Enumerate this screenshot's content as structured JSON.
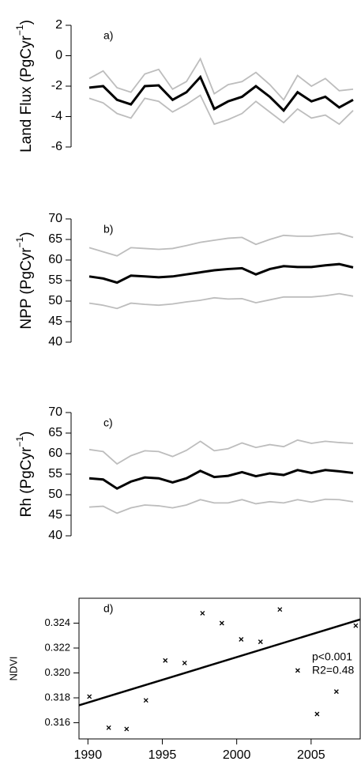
{
  "chart_data": [
    {
      "type": "line",
      "label": "a)",
      "ylabel": "Land Flux  (PgCyr",
      "ylabel_sup": "−1",
      "ylabel_end": ")",
      "x": [
        1990,
        1991,
        1992,
        1993,
        1994,
        1995,
        1996,
        1997,
        1998,
        1999,
        2000,
        2001,
        2002,
        2003,
        2004,
        2005,
        2006,
        2007,
        2008,
        2009
      ],
      "ylim": [
        -6,
        2
      ],
      "yticks": [
        -6,
        -4,
        -2,
        0,
        2
      ],
      "series": [
        {
          "color": "#bdbdbd",
          "values": [
            -1.5,
            -1.0,
            -2.1,
            -2.4,
            -1.2,
            -0.9,
            -2.2,
            -1.7,
            -0.2,
            -2.5,
            -1.9,
            -1.7,
            -1.1,
            -1.9,
            -2.9,
            -1.3,
            -2.0,
            -1.5,
            -2.3,
            -2.2
          ]
        },
        {
          "color": "#bdbdbd",
          "values": [
            -2.8,
            -3.1,
            -3.8,
            -4.1,
            -2.8,
            -3.0,
            -3.7,
            -3.2,
            -2.6,
            -4.5,
            -4.2,
            -3.8,
            -3.0,
            -3.7,
            -4.4,
            -3.5,
            -4.1,
            -3.9,
            -4.5,
            -3.6
          ]
        },
        {
          "color": "#000000",
          "values": [
            -2.1,
            -2.0,
            -2.9,
            -3.2,
            -2.0,
            -1.95,
            -2.9,
            -2.4,
            -1.4,
            -3.5,
            -3.0,
            -2.7,
            -2.0,
            -2.7,
            -3.6,
            -2.4,
            -3.0,
            -2.7,
            -3.4,
            -2.9
          ]
        }
      ]
    },
    {
      "type": "line",
      "label": "b)",
      "ylabel": "NPP (PgCyr",
      "ylabel_sup": "−1",
      "ylabel_end": ")",
      "x": [
        1990,
        1991,
        1992,
        1993,
        1994,
        1995,
        1996,
        1997,
        1998,
        1999,
        2000,
        2001,
        2002,
        2003,
        2004,
        2005,
        2006,
        2007,
        2008,
        2009
      ],
      "ylim": [
        40,
        70
      ],
      "yticks": [
        40,
        45,
        50,
        55,
        60,
        65,
        70
      ],
      "series": [
        {
          "color": "#bdbdbd",
          "values": [
            63,
            62,
            61,
            63,
            62.8,
            62.6,
            62.8,
            63.5,
            64.3,
            64.8,
            65.3,
            65.5,
            63.8,
            65,
            66,
            65.8,
            65.8,
            66.2,
            66.5,
            65.5
          ]
        },
        {
          "color": "#bdbdbd",
          "values": [
            49.5,
            49,
            48.2,
            49.5,
            49.2,
            49,
            49.3,
            49.8,
            50.2,
            50.8,
            50.5,
            50.6,
            49.6,
            50.3,
            51,
            51,
            51,
            51.3,
            51.8,
            51.2
          ]
        },
        {
          "color": "#000000",
          "values": [
            56,
            55.5,
            54.5,
            56.2,
            56,
            55.8,
            56,
            56.5,
            57,
            57.5,
            57.8,
            58,
            56.5,
            57.8,
            58.5,
            58.3,
            58.3,
            58.7,
            59,
            58.2
          ]
        }
      ]
    },
    {
      "type": "line",
      "label": "c)",
      "ylabel": "Rh (PgCyr",
      "ylabel_sup": "−1",
      "ylabel_end": ")",
      "x": [
        1990,
        1991,
        1992,
        1993,
        1994,
        1995,
        1996,
        1997,
        1998,
        1999,
        2000,
        2001,
        2002,
        2003,
        2004,
        2005,
        2006,
        2007,
        2008,
        2009
      ],
      "ylim": [
        40,
        70
      ],
      "yticks": [
        40,
        45,
        50,
        55,
        60,
        65,
        70
      ],
      "series": [
        {
          "color": "#bdbdbd",
          "values": [
            61,
            60.5,
            57.5,
            59.5,
            60.7,
            60.5,
            59.3,
            60.8,
            63,
            60.7,
            61.2,
            62.6,
            61.5,
            62.2,
            61.7,
            63.3,
            62.5,
            63,
            62.7,
            62.5
          ]
        },
        {
          "color": "#bdbdbd",
          "values": [
            47,
            47.2,
            45.5,
            46.8,
            47.5,
            47.3,
            46.8,
            47.5,
            48.8,
            48,
            48,
            48.8,
            47.8,
            48.3,
            48,
            48.8,
            48.2,
            48.9,
            48.8,
            48.3
          ]
        },
        {
          "color": "#000000",
          "values": [
            54,
            53.7,
            51.5,
            53.2,
            54.2,
            54,
            53,
            54,
            55.8,
            54.3,
            54.6,
            55.5,
            54.5,
            55.2,
            54.8,
            56,
            55.3,
            56,
            55.7,
            55.3
          ]
        }
      ]
    },
    {
      "type": "scatter",
      "label": "d)",
      "ylabel": "NDVI",
      "x": [
        1990.1,
        1991.4,
        1992.6,
        1993.9,
        1995.2,
        1996.5,
        1997.7,
        1999.0,
        2000.3,
        2001.6,
        2002.9,
        2004.1,
        2005.4,
        2006.7,
        2008.0
      ],
      "values": [
        0.3181,
        0.3156,
        0.3155,
        0.3178,
        0.321,
        0.3208,
        0.3248,
        0.324,
        0.3227,
        0.3225,
        0.3251,
        0.3202,
        0.3167,
        0.3185,
        0.3238
      ],
      "color": "#000000",
      "xlim": [
        1989.4,
        2008.3
      ],
      "xticks": [
        1990,
        1995,
        2000,
        2005
      ],
      "ylim": [
        0.3147,
        0.326
      ],
      "yticks": [
        {
          "value": 0.316,
          "label": "0.316"
        },
        {
          "value": 0.318,
          "label": "0.318"
        },
        {
          "value": 0.32,
          "label": "0.320"
        },
        {
          "value": 0.322,
          "label": "0.322"
        },
        {
          "value": 0.324,
          "label": "0.324"
        }
      ],
      "trend": {
        "x": [
          1989.4,
          2008.3
        ],
        "values": [
          0.3174,
          0.3243
        ]
      },
      "annotations": [
        "p<0.001",
        "R2=0.48"
      ]
    }
  ]
}
